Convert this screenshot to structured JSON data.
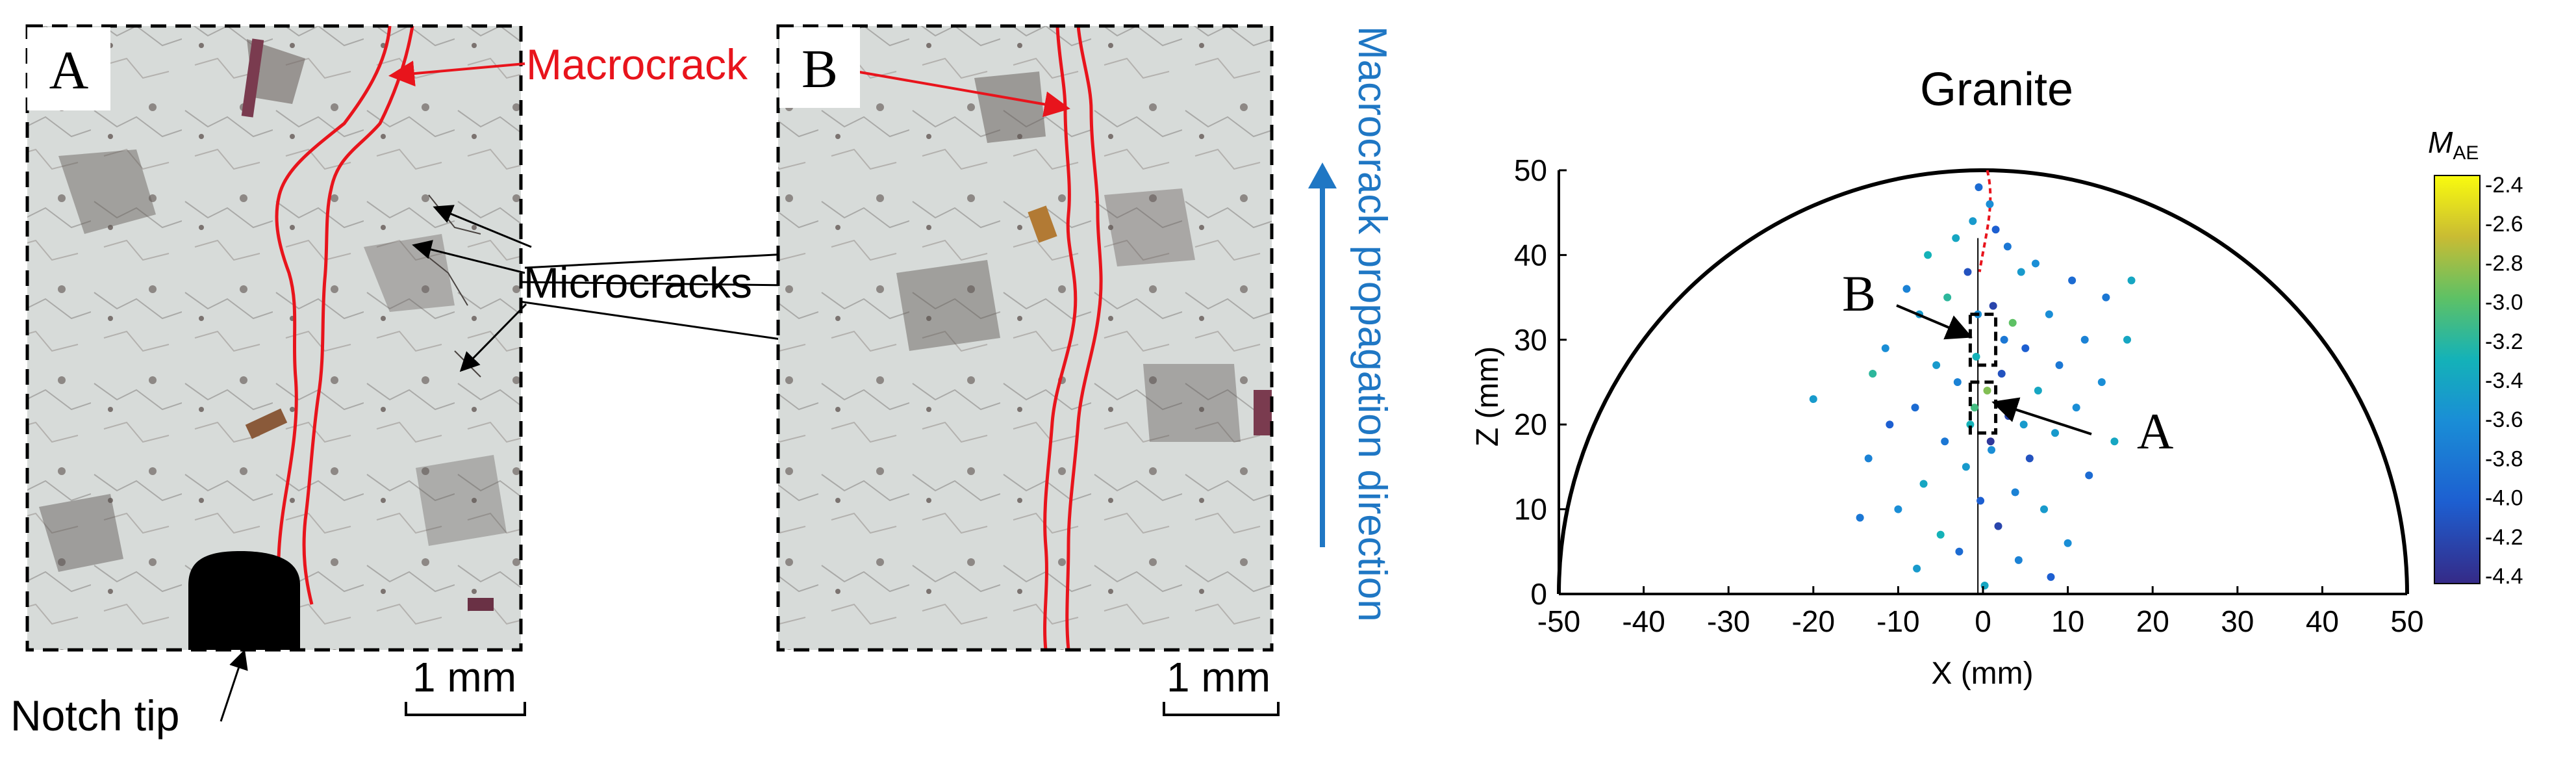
{
  "panel_a": {
    "letter": "A",
    "macrocrack_label": "Macrocrack",
    "microcracks_label": "Microcracks",
    "notch_label": "Notch tip",
    "scale_label": "1 mm"
  },
  "panel_b": {
    "letter": "B",
    "scale_label": "1 mm"
  },
  "propagation_label": "Macrocrack propagation direction",
  "colors": {
    "macrocrack": "#e8141c",
    "arrow_blue": "#1f77c4",
    "label_red": "#e8141c"
  },
  "chart_data": {
    "type": "scatter",
    "title": "Granite",
    "xlabel": "X (mm)",
    "ylabel": "Z (mm)",
    "xlim": [
      -50,
      50
    ],
    "ylim": [
      0,
      50
    ],
    "xticks": [
      -50,
      -40,
      -30,
      -20,
      -10,
      0,
      10,
      20,
      30,
      40,
      50
    ],
    "yticks": [
      0,
      10,
      20,
      30,
      40,
      50
    ],
    "boundary": "semicircle radius 50 mm",
    "colorbar": {
      "label": "M",
      "label_sub": "AE",
      "range": [
        -4.4,
        -2.4
      ],
      "ticks": [
        "-2.4",
        "-2.6",
        "-2.8",
        "-3.0",
        "-3.2",
        "-3.4",
        "-3.6",
        "-3.8",
        "-4.0",
        "-4.2",
        "-4.4"
      ],
      "colormap": "parula"
    },
    "annotations": [
      {
        "text": "A",
        "box_x": [
          -1.5,
          1.5
        ],
        "box_z": [
          19,
          25
        ]
      },
      {
        "text": "B",
        "box_x": [
          -1.5,
          1.5
        ],
        "box_z": [
          27,
          33
        ]
      }
    ],
    "points": [
      {
        "x": -0.5,
        "z": 48,
        "m": -3.9
      },
      {
        "x": 0.8,
        "z": 46,
        "m": -3.6
      },
      {
        "x": -1.2,
        "z": 44,
        "m": -3.5
      },
      {
        "x": 1.5,
        "z": 43,
        "m": -4.0
      },
      {
        "x": -3.2,
        "z": 42,
        "m": -3.4
      },
      {
        "x": 2.9,
        "z": 41,
        "m": -3.8
      },
      {
        "x": -6.5,
        "z": 40,
        "m": -3.3
      },
      {
        "x": 6.2,
        "z": 39,
        "m": -3.6
      },
      {
        "x": -1.8,
        "z": 38,
        "m": -4.1
      },
      {
        "x": 4.5,
        "z": 38,
        "m": -3.5
      },
      {
        "x": 10.5,
        "z": 37,
        "m": -3.9
      },
      {
        "x": -9.0,
        "z": 36,
        "m": -3.7
      },
      {
        "x": 17.5,
        "z": 37,
        "m": -3.4
      },
      {
        "x": 14.5,
        "z": 35,
        "m": -3.8
      },
      {
        "x": -4.2,
        "z": 35,
        "m": -3.2
      },
      {
        "x": 1.2,
        "z": 34,
        "m": -4.2
      },
      {
        "x": 7.8,
        "z": 33,
        "m": -3.6
      },
      {
        "x": -7.5,
        "z": 33,
        "m": -3.5
      },
      {
        "x": 3.5,
        "z": 32,
        "m": -3.0
      },
      {
        "x": -2.5,
        "z": 31,
        "m": -3.9
      },
      {
        "x": 17.0,
        "z": 30,
        "m": -3.4
      },
      {
        "x": 12.0,
        "z": 30,
        "m": -3.7
      },
      {
        "x": -11.5,
        "z": 29,
        "m": -3.6
      },
      {
        "x": 5.0,
        "z": 29,
        "m": -4.0
      },
      {
        "x": -0.8,
        "z": 28,
        "m": -3.3
      },
      {
        "x": 9.0,
        "z": 27,
        "m": -3.8
      },
      {
        "x": -5.5,
        "z": 27,
        "m": -3.5
      },
      {
        "x": 2.2,
        "z": 26,
        "m": -4.1
      },
      {
        "x": -13.0,
        "z": 26,
        "m": -3.2
      },
      {
        "x": 14.0,
        "z": 25,
        "m": -3.6
      },
      {
        "x": -3.0,
        "z": 25,
        "m": -3.7
      },
      {
        "x": 6.5,
        "z": 24,
        "m": -3.4
      },
      {
        "x": 0.5,
        "z": 24,
        "m": -2.9
      },
      {
        "x": -20.0,
        "z": 23,
        "m": -3.5
      },
      {
        "x": -8.0,
        "z": 22,
        "m": -3.9
      },
      {
        "x": 11.0,
        "z": 22,
        "m": -3.6
      },
      {
        "x": 3.0,
        "z": 21,
        "m": -4.2
      },
      {
        "x": -1.5,
        "z": 20,
        "m": -3.3
      },
      {
        "x": -11.0,
        "z": 20,
        "m": -4.0
      },
      {
        "x": 8.5,
        "z": 19,
        "m": -3.5
      },
      {
        "x": -4.5,
        "z": 18,
        "m": -3.8
      },
      {
        "x": 15.5,
        "z": 18,
        "m": -3.4
      },
      {
        "x": 1.0,
        "z": 17,
        "m": -3.6
      },
      {
        "x": -13.5,
        "z": 16,
        "m": -3.7
      },
      {
        "x": 5.5,
        "z": 16,
        "m": -4.1
      },
      {
        "x": -2.0,
        "z": 15,
        "m": -3.5
      },
      {
        "x": 12.5,
        "z": 14,
        "m": -3.9
      },
      {
        "x": -7.0,
        "z": 13,
        "m": -3.4
      },
      {
        "x": 3.8,
        "z": 12,
        "m": -3.7
      },
      {
        "x": -0.3,
        "z": 11,
        "m": -4.0
      },
      {
        "x": -10.0,
        "z": 10,
        "m": -3.6
      },
      {
        "x": 7.2,
        "z": 10,
        "m": -3.5
      },
      {
        "x": -14.5,
        "z": 9,
        "m": -3.8
      },
      {
        "x": 1.8,
        "z": 8,
        "m": -4.2
      },
      {
        "x": -5.0,
        "z": 7,
        "m": -3.3
      },
      {
        "x": 10.0,
        "z": 6,
        "m": -3.6
      },
      {
        "x": -2.8,
        "z": 5,
        "m": -3.9
      },
      {
        "x": 4.2,
        "z": 4,
        "m": -3.7
      },
      {
        "x": -7.8,
        "z": 3,
        "m": -3.5
      },
      {
        "x": 8.0,
        "z": 2,
        "m": -4.0
      },
      {
        "x": 0.2,
        "z": 1,
        "m": -3.4
      },
      {
        "x": 2.5,
        "z": 30,
        "m": -3.8
      },
      {
        "x": -1.0,
        "z": 22,
        "m": -3.1
      },
      {
        "x": 0.9,
        "z": 18,
        "m": -4.3
      },
      {
        "x": -0.6,
        "z": 33,
        "m": -3.6
      },
      {
        "x": 4.8,
        "z": 20,
        "m": -3.5
      }
    ]
  }
}
